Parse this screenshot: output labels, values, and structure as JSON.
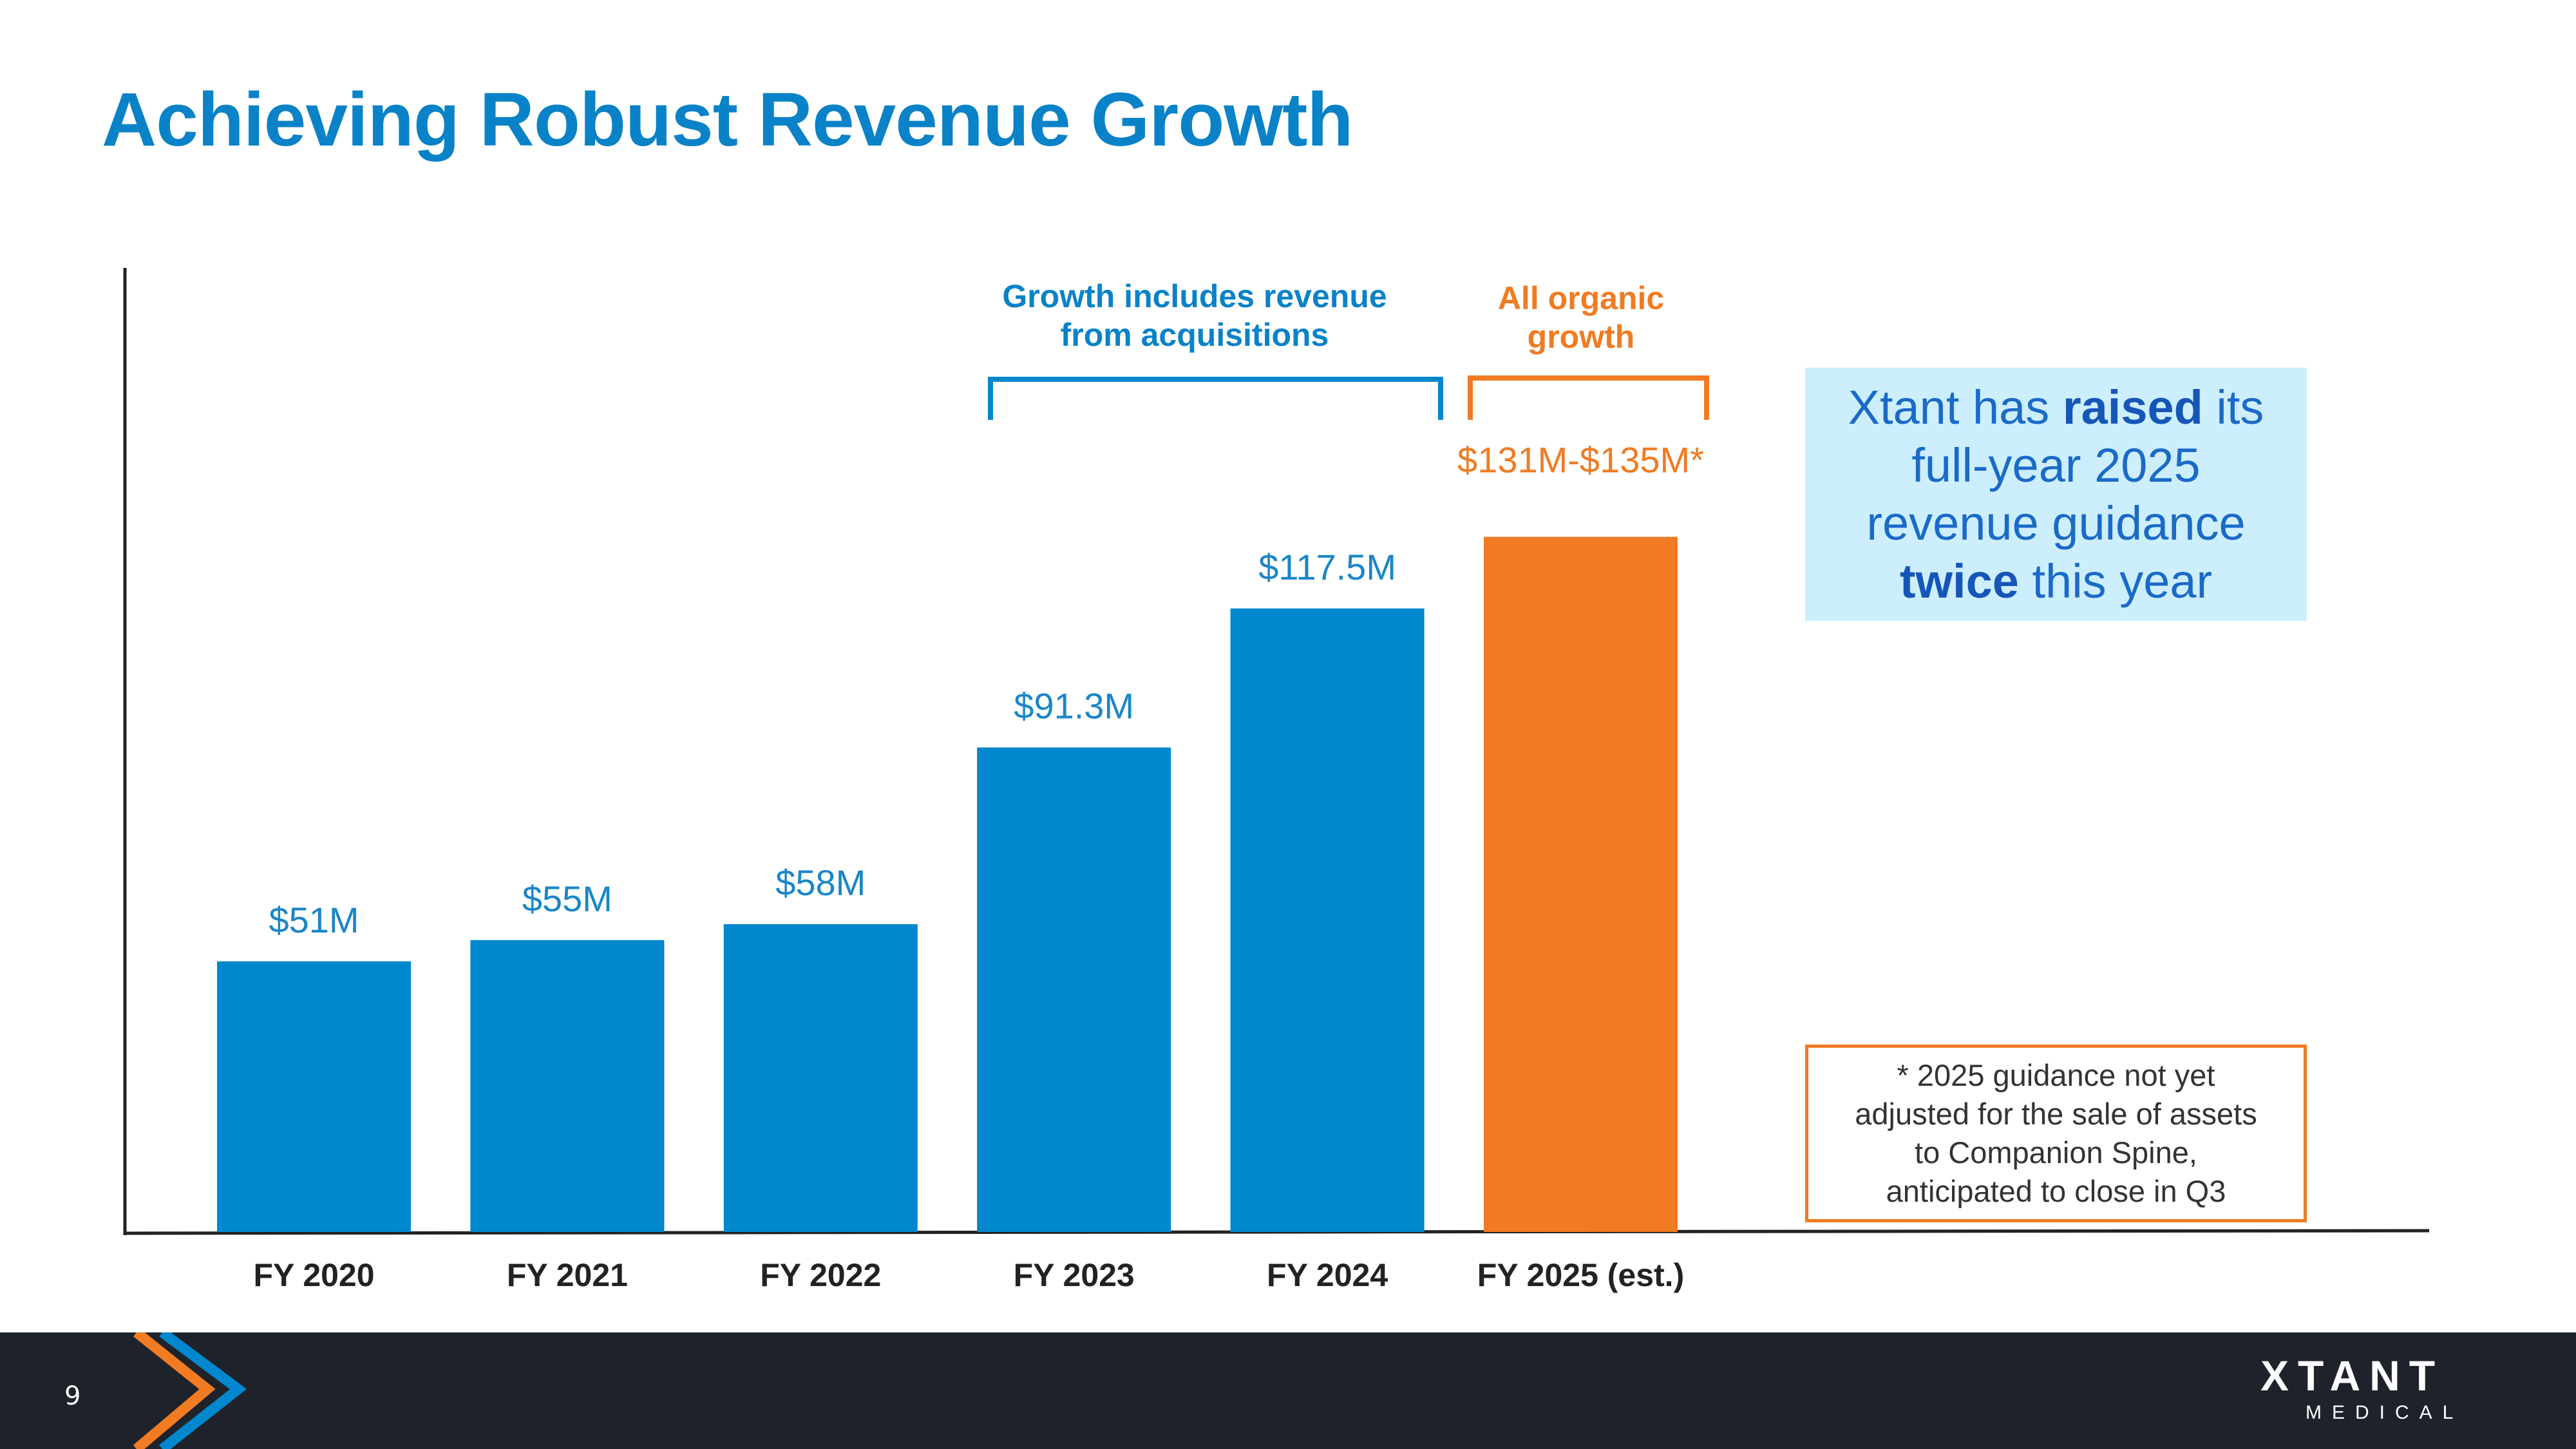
{
  "title": "Achieving Robust Revenue Growth",
  "colors": {
    "primary_blue": "#0087cd",
    "accent_orange": "#f07b22",
    "footer_bg": "#1e222b",
    "callout_bg": "#cdeefc"
  },
  "annotations": {
    "acquisitions": {
      "line1": "Growth includes revenue",
      "line2": "from acquisitions",
      "spans": [
        "FY 2023",
        "FY 2024"
      ]
    },
    "organic": {
      "line1": "All organic",
      "line2": "growth",
      "spans": [
        "FY 2025 (est.)"
      ]
    }
  },
  "callout": {
    "pre1": "Xtant has ",
    "bold1": "raised",
    "post1": " its",
    "line2": "full-year 2025",
    "line3": "revenue guidance",
    "bold4": "twice",
    "post4": " this year"
  },
  "footnote": {
    "line1": "* 2025 guidance not yet",
    "line2": "adjusted for the sale of assets",
    "line3": "to Companion Spine,",
    "line4": "anticipated to close in Q3"
  },
  "footer": {
    "page_number": "9",
    "logo_main": "XTANT",
    "logo_sub": "MEDICAL"
  },
  "chart_data": {
    "type": "bar",
    "title": "",
    "xlabel": "",
    "ylabel": "",
    "categories": [
      "FY 2020",
      "FY 2021",
      "FY 2022",
      "FY 2023",
      "FY 2024",
      "FY 2025 (est.)"
    ],
    "values": [
      51,
      55,
      58,
      91.3,
      117.5,
      131
    ],
    "value_ranges": [
      null,
      null,
      null,
      null,
      null,
      [
        131,
        135
      ]
    ],
    "data_labels": [
      "$51M",
      "$55M",
      "$58M",
      "$91.3M",
      "$117.5M",
      "$131M-$135M*"
    ],
    "bar_colors": [
      "#0087cd",
      "#0087cd",
      "#0087cd",
      "#0087cd",
      "#0087cd",
      "#f07b22"
    ],
    "units": "$M",
    "ylim": [
      0,
      135
    ],
    "grid": false,
    "legend": "none"
  }
}
